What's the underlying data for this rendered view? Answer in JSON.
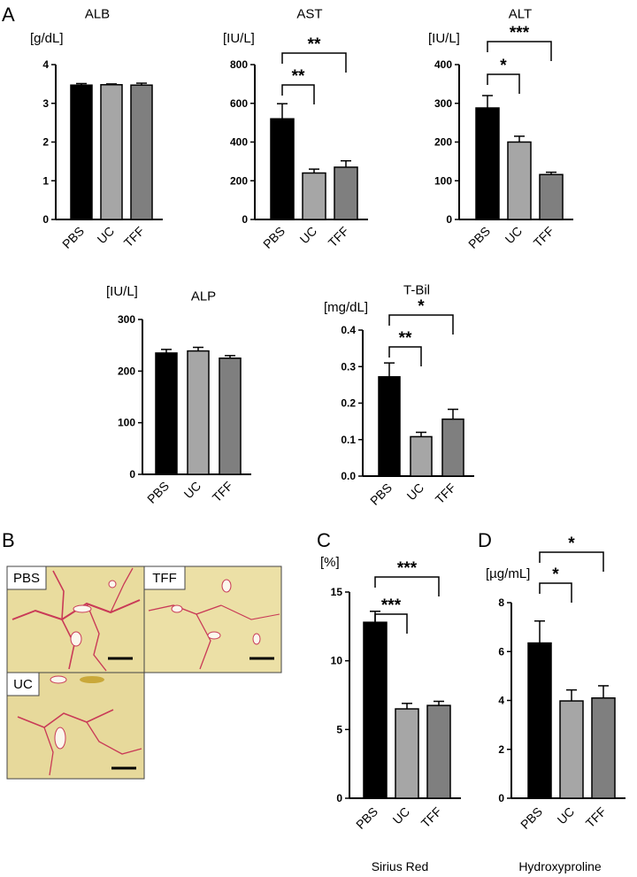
{
  "panels": {
    "a": "A",
    "b": "B",
    "c": "C",
    "d": "D"
  },
  "micrographs": {
    "labels": [
      "PBS",
      "TFF",
      "UC"
    ],
    "stain_background": "#e9dc9e",
    "fibrosis_color": "#c93a57"
  },
  "colors": {
    "PBS": "#000000",
    "UC": "#a6a6a6",
    "TFF": "#7f7f7f"
  },
  "chart_data": [
    {
      "id": "alb",
      "type": "bar",
      "title": "ALB",
      "unit": "[g/dL]",
      "categories": [
        "PBS",
        "UC",
        "TFF"
      ],
      "values": [
        3.47,
        3.48,
        3.47
      ],
      "errors": [
        0.04,
        0.02,
        0.05
      ],
      "ylim": [
        0,
        4
      ],
      "yticks": [
        "0",
        "1",
        "2",
        "3",
        "4"
      ],
      "significance": [],
      "caption": ""
    },
    {
      "id": "ast",
      "type": "bar",
      "title": "AST",
      "unit": "[IU/L]",
      "categories": [
        "PBS",
        "UC",
        "TFF"
      ],
      "values": [
        520,
        240,
        270
      ],
      "errors": [
        78,
        20,
        33
      ],
      "ylim": [
        0,
        800
      ],
      "yticks": [
        "0",
        "200",
        "400",
        "600",
        "800"
      ],
      "significance": [
        {
          "from": "PBS",
          "to": "UC",
          "label": "**"
        },
        {
          "from": "PBS",
          "to": "TFF",
          "label": "**"
        }
      ],
      "caption": ""
    },
    {
      "id": "alt",
      "type": "bar",
      "title": "ALT",
      "unit": "[IU/L]",
      "categories": [
        "PBS",
        "UC",
        "TFF"
      ],
      "values": [
        288,
        200,
        116
      ],
      "errors": [
        32,
        15,
        6
      ],
      "ylim": [
        0,
        400
      ],
      "yticks": [
        "0",
        "100",
        "200",
        "300",
        "400"
      ],
      "significance": [
        {
          "from": "PBS",
          "to": "UC",
          "label": "*"
        },
        {
          "from": "PBS",
          "to": "TFF",
          "label": "***"
        }
      ],
      "caption": ""
    },
    {
      "id": "alp",
      "type": "bar",
      "title": "ALP",
      "unit": "[IU/L]",
      "categories": [
        "PBS",
        "UC",
        "TFF"
      ],
      "values": [
        235,
        239,
        225
      ],
      "errors": [
        7,
        7,
        5
      ],
      "ylim": [
        0,
        300
      ],
      "yticks": [
        "0",
        "100",
        "200",
        "300"
      ],
      "significance": [],
      "caption": ""
    },
    {
      "id": "tbil",
      "type": "bar",
      "title": "T-Bil",
      "unit": "[mg/dL]",
      "categories": [
        "PBS",
        "UC",
        "TFF"
      ],
      "values": [
        0.272,
        0.108,
        0.156
      ],
      "errors": [
        0.038,
        0.012,
        0.027
      ],
      "ylim": [
        0,
        0.4
      ],
      "yticks": [
        "0.0",
        "0.1",
        "0.2",
        "0.3",
        "0.4"
      ],
      "significance": [
        {
          "from": "PBS",
          "to": "UC",
          "label": "**"
        },
        {
          "from": "PBS",
          "to": "TFF",
          "label": "*"
        }
      ],
      "caption": ""
    },
    {
      "id": "sirius",
      "type": "bar",
      "title": "",
      "unit": "[%]",
      "categories": [
        "PBS",
        "UC",
        "TFF"
      ],
      "values": [
        12.8,
        6.5,
        6.75
      ],
      "errors": [
        0.8,
        0.4,
        0.3
      ],
      "ylim": [
        0,
        15
      ],
      "yticks": [
        "0",
        "5",
        "10",
        "15"
      ],
      "significance": [
        {
          "from": "PBS",
          "to": "UC",
          "label": "***"
        },
        {
          "from": "PBS",
          "to": "TFF",
          "label": "***"
        }
      ],
      "caption": "Sirius Red"
    },
    {
      "id": "hyp",
      "type": "bar",
      "title": "",
      "unit": "[µg/mL]",
      "categories": [
        "PBS",
        "UC",
        "TFF"
      ],
      "values": [
        6.35,
        3.98,
        4.1
      ],
      "errors": [
        0.9,
        0.45,
        0.5
      ],
      "ylim": [
        0,
        8
      ],
      "yticks": [
        "0",
        "2",
        "4",
        "6",
        "8"
      ],
      "significance": [
        {
          "from": "PBS",
          "to": "UC",
          "label": "*"
        },
        {
          "from": "PBS",
          "to": "TFF",
          "label": "*"
        }
      ],
      "caption": "Hydroxyproline"
    }
  ]
}
